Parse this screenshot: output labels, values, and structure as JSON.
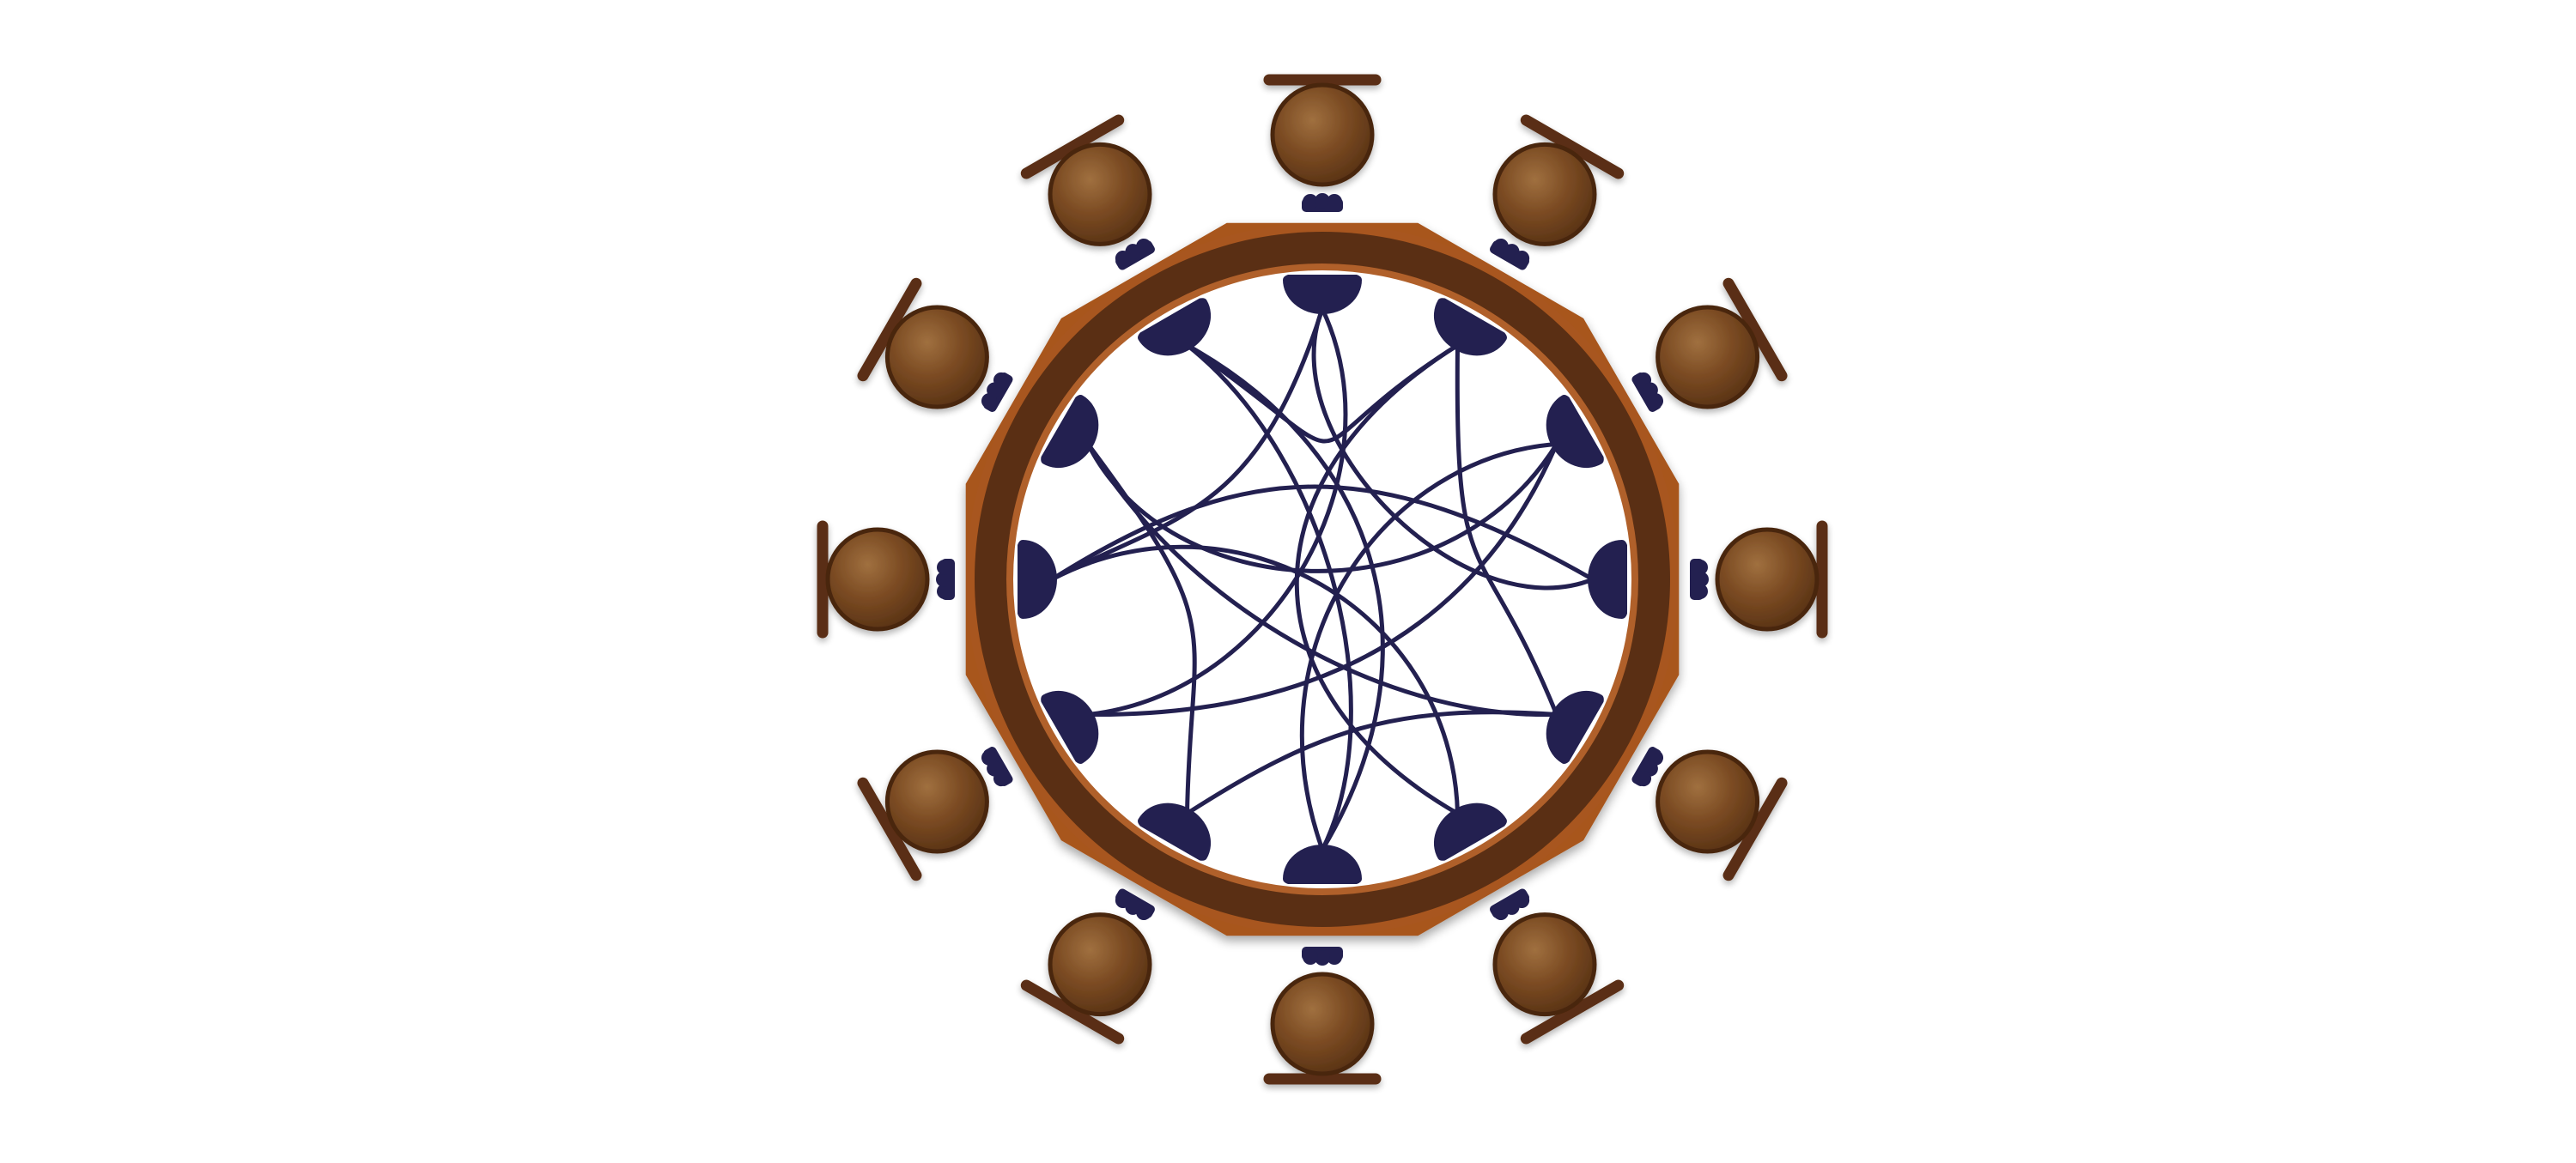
{
  "diagram": {
    "kind": "circular-table-seating-with-connections",
    "colors": {
      "background": "#ffffff",
      "table_outer": "#a8561f",
      "table_ring": "#5a2f14",
      "table_inner_rim": "#b0602a",
      "table_surface": "#ffffff",
      "port": "#232050",
      "wire": "#232050",
      "seat_fill_light": "#a0703f",
      "seat_fill": "#7a4a22",
      "seat_fill_dark": "#5c3516",
      "seat_edge": "#4a2610",
      "backrest": "#5a2d12",
      "shadow": "#000000"
    },
    "table": {
      "outer_shape": "dodecagon",
      "seat_count": 12,
      "port_count": 12
    },
    "seats": [
      {
        "id": "seat-1",
        "angle_deg": 0
      },
      {
        "id": "seat-2",
        "angle_deg": 30
      },
      {
        "id": "seat-3",
        "angle_deg": 60
      },
      {
        "id": "seat-4",
        "angle_deg": 90
      },
      {
        "id": "seat-5",
        "angle_deg": 120
      },
      {
        "id": "seat-6",
        "angle_deg": 150
      },
      {
        "id": "seat-7",
        "angle_deg": 180
      },
      {
        "id": "seat-8",
        "angle_deg": 210
      },
      {
        "id": "seat-9",
        "angle_deg": 240
      },
      {
        "id": "seat-10",
        "angle_deg": 270
      },
      {
        "id": "seat-11",
        "angle_deg": 300
      },
      {
        "id": "seat-12",
        "angle_deg": 330
      }
    ],
    "connections": [
      {
        "from": 0,
        "to": 3
      },
      {
        "from": 0,
        "to": 8
      },
      {
        "from": 1,
        "to": 11
      },
      {
        "from": 1,
        "to": 4
      },
      {
        "from": 2,
        "to": 6
      },
      {
        "from": 2,
        "to": 10
      },
      {
        "from": 3,
        "to": 9
      },
      {
        "from": 4,
        "to": 7
      },
      {
        "from": 5,
        "to": 9
      },
      {
        "from": 5,
        "to": 1
      },
      {
        "from": 6,
        "to": 11
      },
      {
        "from": 7,
        "to": 10
      },
      {
        "from": 8,
        "to": 2
      },
      {
        "from": 9,
        "to": 0
      },
      {
        "from": 10,
        "to": 4
      },
      {
        "from": 11,
        "to": 6
      }
    ]
  }
}
